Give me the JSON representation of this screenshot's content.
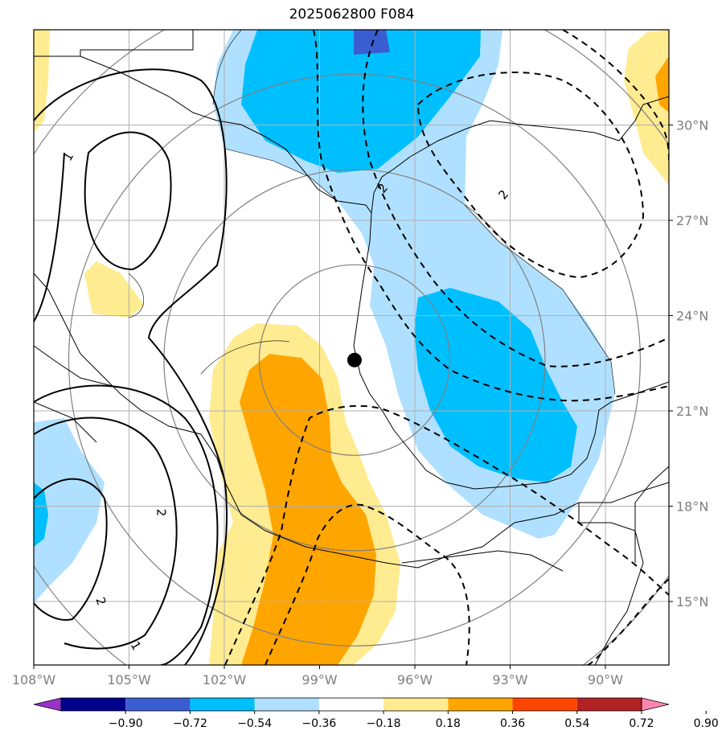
{
  "title": "2025062800 F084",
  "map": {
    "lon_range": [
      -108,
      -88
    ],
    "lat_range": [
      13,
      33
    ],
    "lon_ticks": [
      {
        "value": -108,
        "label": "108°W"
      },
      {
        "value": -105,
        "label": "105°W"
      },
      {
        "value": -102,
        "label": "102°W"
      },
      {
        "value": -99,
        "label": "99°W"
      },
      {
        "value": -96,
        "label": "96°W"
      },
      {
        "value": -93,
        "label": "93°W"
      },
      {
        "value": -90,
        "label": "90°W"
      }
    ],
    "lat_ticks": [
      {
        "value": 30,
        "label": "30°N"
      },
      {
        "value": 27,
        "label": "27°N"
      },
      {
        "value": 24,
        "label": "24°N"
      },
      {
        "value": 21,
        "label": "21°N"
      },
      {
        "value": 18,
        "label": "18°N"
      },
      {
        "value": 15,
        "label": "15°N"
      }
    ],
    "gridlines": true,
    "center_marker": {
      "lon": -97.9,
      "lat": 22.6
    },
    "range_rings_deg": [
      3,
      6,
      9,
      12
    ],
    "contour_labels": [
      {
        "text": "1",
        "lon": -106.9,
        "lat": 29.0,
        "rot": -60
      },
      {
        "text": "2",
        "lon": -97.0,
        "lat": 28.0,
        "rot": -50
      },
      {
        "text": "2",
        "lon": -93.2,
        "lat": 27.8,
        "rot": -50
      },
      {
        "text": "2",
        "lon": -105.9,
        "lat": 15.0,
        "rot": 70
      },
      {
        "text": "2",
        "lon": -104.0,
        "lat": 17.8,
        "rot": 90
      },
      {
        "text": "1",
        "lon": -104.8,
        "lat": 13.6,
        "rot": 60
      }
    ]
  },
  "colorbar": {
    "levels": [
      -0.9,
      -0.72,
      -0.54,
      -0.36,
      -0.18,
      0.18,
      0.36,
      0.54,
      0.72,
      0.9
    ],
    "labels": [
      "−0.90",
      "−0.72",
      "−0.54",
      "−0.36",
      "−0.18",
      "0.18",
      "0.36",
      "0.54",
      "0.72",
      "0.90"
    ],
    "colors": [
      "#9932cc",
      "#00008b",
      "#3a5ed1",
      "#00bfff",
      "#b0e0ff",
      "#ffffff",
      "#ffeb90",
      "#ffa500",
      "#ff4500",
      "#b22222",
      "#ff85b0"
    ]
  },
  "fill_colors": {
    "light_blue": "#b0e0ff",
    "blue": "#00bfff",
    "dark_blue": "#3a5ed1",
    "light_yellow": "#ffeb90",
    "orange": "#ffa500"
  }
}
